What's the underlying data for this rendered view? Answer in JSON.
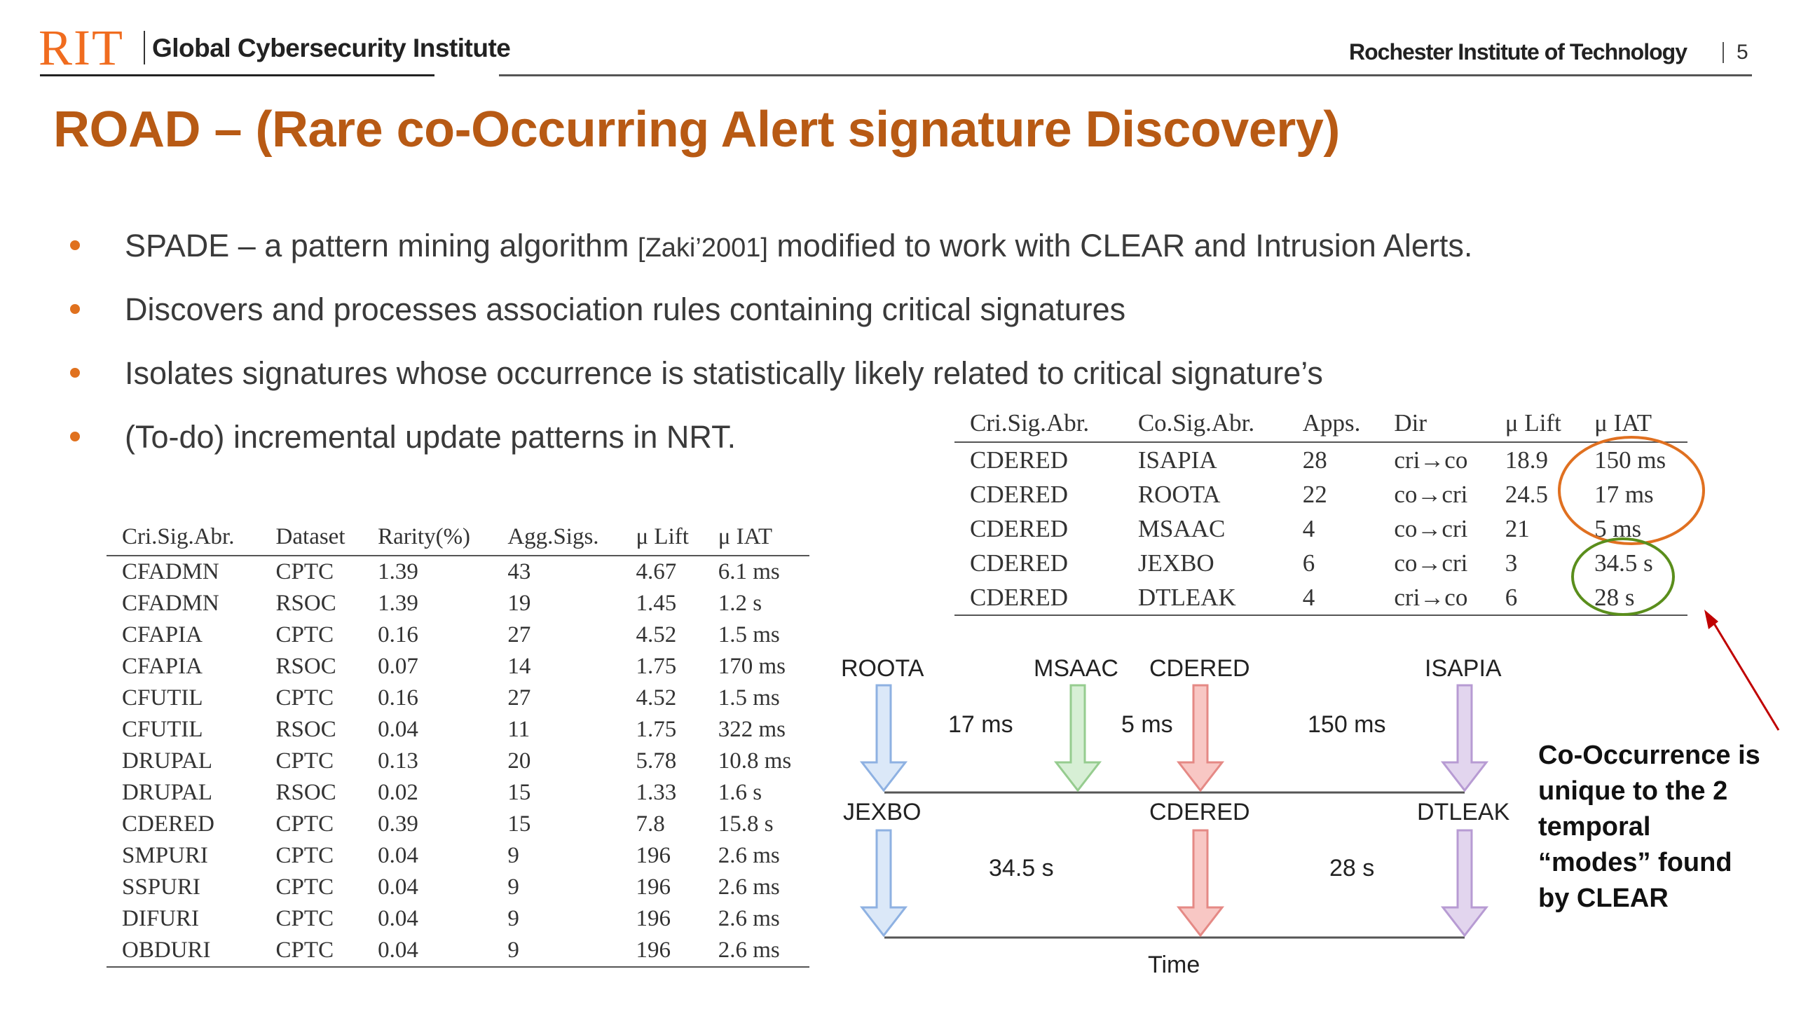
{
  "header": {
    "logo_text": "RIT",
    "logo_subtitle": "Global Cybersecurity Institute",
    "institution": "Rochester Institute of Technology",
    "page_number": "5"
  },
  "slide": {
    "title": "ROAD – (Rare co-Occurring Alert signature Discovery)",
    "bullets": [
      {
        "text_before": "SPADE – a pattern mining algorithm ",
        "cite": "[Zaki’2001]",
        "text_after": " modified to work with CLEAR and Intrusion Alerts."
      },
      {
        "text": "Discovers and processes association rules containing critical signatures"
      },
      {
        "text": "Isolates signatures whose occurrence is statistically likely related to critical signature’s"
      },
      {
        "text": "(To-do) incremental update patterns in NRT."
      }
    ],
    "accent_color": "#e0711e",
    "title_color": "#b85a14"
  },
  "left_table": {
    "headers": [
      "Cri.Sig.Abr.",
      "Dataset",
      "Rarity(%)",
      "Agg.Sigs.",
      "μ Lift",
      "μ IAT"
    ],
    "rows": [
      [
        "CFADMN",
        "CPTC",
        "1.39",
        "43",
        "4.67",
        "6.1 ms"
      ],
      [
        "CFADMN",
        "RSOC",
        "1.39",
        "19",
        "1.45",
        "1.2 s"
      ],
      [
        "CFAPIA",
        "CPTC",
        "0.16",
        "27",
        "4.52",
        "1.5 ms"
      ],
      [
        "CFAPIA",
        "RSOC",
        "0.07",
        "14",
        "1.75",
        "170 ms"
      ],
      [
        "CFUTIL",
        "CPTC",
        "0.16",
        "27",
        "4.52",
        "1.5 ms"
      ],
      [
        "CFUTIL",
        "RSOC",
        "0.04",
        "11",
        "1.75",
        "322 ms"
      ],
      [
        "DRUPAL",
        "CPTC",
        "0.13",
        "20",
        "5.78",
        "10.8 ms"
      ],
      [
        "DRUPAL",
        "RSOC",
        "0.02",
        "15",
        "1.33",
        "1.6 s"
      ],
      [
        "CDERED",
        "CPTC",
        "0.39",
        "15",
        "7.8",
        "15.8 s"
      ],
      [
        "SMPURI",
        "CPTC",
        "0.04",
        "9",
        "196",
        "2.6 ms"
      ],
      [
        "SSPURI",
        "CPTC",
        "0.04",
        "9",
        "196",
        "2.6 ms"
      ],
      [
        "DIFURI",
        "CPTC",
        "0.04",
        "9",
        "196",
        "2.6 ms"
      ],
      [
        "OBDURI",
        "CPTC",
        "0.04",
        "9",
        "196",
        "2.6 ms"
      ]
    ]
  },
  "right_table": {
    "headers": [
      "Cri.Sig.Abr.",
      "Co.Sig.Abr.",
      "Apps.",
      "Dir",
      "μ Lift",
      "μ IAT"
    ],
    "rows": [
      [
        "CDERED",
        "ISAPIA",
        "28",
        "cri→co",
        "18.9",
        "150 ms"
      ],
      [
        "CDERED",
        "ROOTA",
        "22",
        "co→cri",
        "24.5",
        "17 ms"
      ],
      [
        "CDERED",
        "MSAAC",
        "4",
        "co→cri",
        "21",
        "5 ms"
      ],
      [
        "CDERED",
        "JEXBO",
        "6",
        "co→cri",
        "3",
        "34.5 s"
      ],
      [
        "CDERED",
        "DTLEAK",
        "4",
        "cri→co",
        "6",
        "28 s"
      ]
    ]
  },
  "diagram": {
    "row1_labels": [
      "ROOTA",
      "MSAAC",
      "CDERED",
      "ISAPIA"
    ],
    "row1_gaps": [
      "17 ms",
      "5 ms",
      "150 ms"
    ],
    "row2_labels": [
      "JEXBO",
      "CDERED",
      "DTLEAK"
    ],
    "row2_gaps": [
      "34.5 s",
      "28 s"
    ],
    "axis_label": "Time",
    "colors": {
      "blue": "#dbe8f8",
      "green": "#d7efd5",
      "red": "#f8c7c4",
      "purple": "#e2d5ee"
    }
  },
  "callout": {
    "lines": [
      "Co-Occurrence is",
      "unique to the 2",
      "temporal",
      "“modes” found",
      "by CLEAR"
    ],
    "circle_colors": {
      "orange": "#e07020",
      "green": "#5a8e1c"
    },
    "arrow_color": "#c00000"
  }
}
